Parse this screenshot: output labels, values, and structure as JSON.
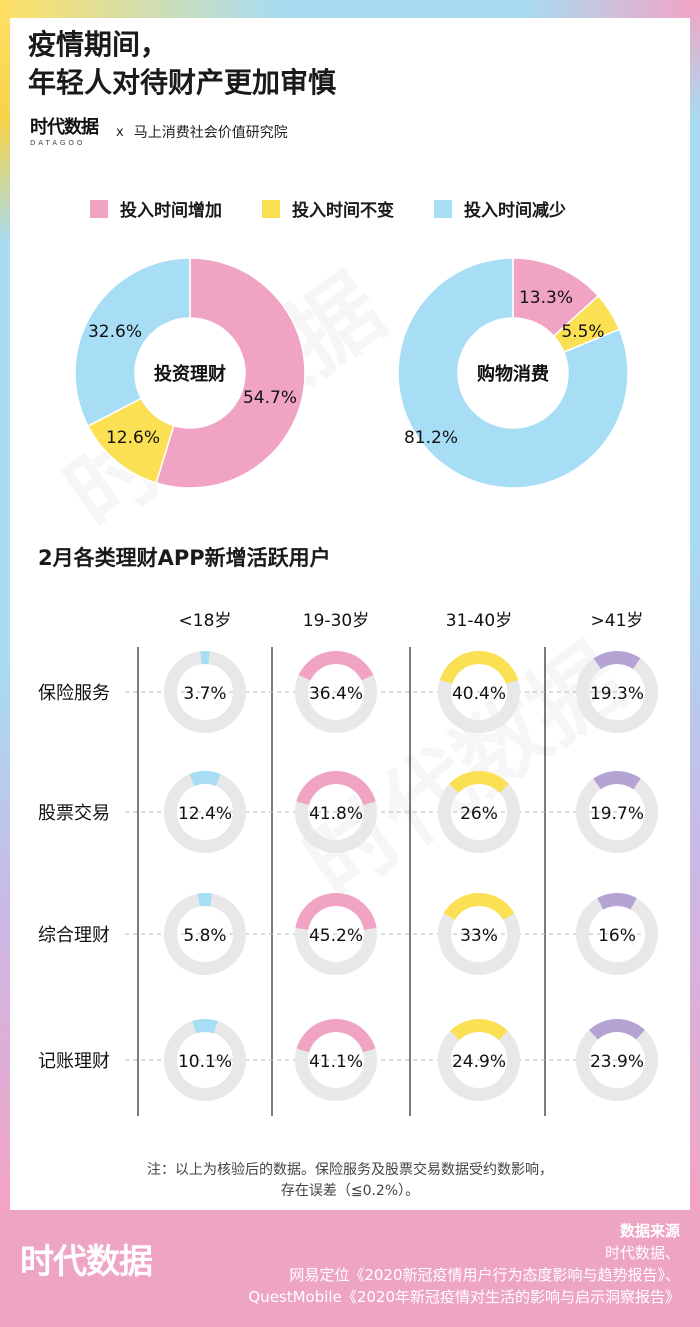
{
  "title": {
    "line1": "疫情期间，",
    "line2": "年轻人对待财产更加审慎"
  },
  "brand": {
    "logo": "时代数据",
    "logo_sub": "DATAGOO",
    "x": "x",
    "partner": "马上消费社会价值研究院"
  },
  "legend": [
    {
      "label": "投入时间增加",
      "color": "#f0a3c3"
    },
    {
      "label": "投入时间不变",
      "color": "#fce054"
    },
    {
      "label": "投入时间减少",
      "color": "#a8def5"
    }
  ],
  "chart_data": [
    {
      "type": "pie",
      "title": "投资理财",
      "slices": [
        {
          "label": "投入时间增加",
          "value": 54.7,
          "text": "54.7%"
        },
        {
          "label": "投入时间不变",
          "value": 12.6,
          "text": "12.6%"
        },
        {
          "label": "投入时间减少",
          "value": 32.6,
          "text": "32.6%"
        }
      ]
    },
    {
      "type": "pie",
      "title": "购物消费",
      "slices": [
        {
          "label": "投入时间增加",
          "value": 13.3,
          "text": "13.3%"
        },
        {
          "label": "投入时间不变",
          "value": 5.5,
          "text": "5.5%"
        },
        {
          "label": "投入时间减少",
          "value": 81.2,
          "text": "81.2%"
        }
      ]
    },
    {
      "type": "table",
      "title": "2月各类理财APP新增活跃用户",
      "columns": [
        {
          "label": "<18岁",
          "color": "#a8def5"
        },
        {
          "label": "19-30岁",
          "color": "#f0a3c3"
        },
        {
          "label": "31-40岁",
          "color": "#fce054"
        },
        {
          "label": ">41岁",
          "color": "#b5a3d4"
        }
      ],
      "rows": [
        {
          "label": "保险服务",
          "values": [
            3.7,
            36.4,
            40.4,
            19.3
          ],
          "texts": [
            "3.7%",
            "36.4%",
            "40.4%",
            "19.3%"
          ]
        },
        {
          "label": "股票交易",
          "values": [
            12.4,
            41.8,
            26,
            19.7
          ],
          "texts": [
            "12.4%",
            "41.8%",
            "26%",
            "19.7%"
          ]
        },
        {
          "label": "综合理财",
          "values": [
            5.8,
            45.2,
            33,
            16
          ],
          "texts": [
            "5.8%",
            "45.2%",
            "33%",
            "16%"
          ]
        },
        {
          "label": "记账理财",
          "values": [
            10.1,
            41.1,
            24.9,
            23.9
          ],
          "texts": [
            "10.1%",
            "41.1%",
            "24.9%",
            "23.9%"
          ]
        }
      ]
    }
  ],
  "note": {
    "line1": "注：以上为核验后的数据。保险服务及股票交易数据受约数影响，",
    "line2": "存在误差（≦0.2%）。"
  },
  "footer": {
    "logo": "时代数据",
    "source_title": "数据来源",
    "sources": [
      "时代数据、",
      "网易定位《2020新冠疫情用户行为态度影响与趋势报告》、",
      "QuestMobile《2020年新冠疫情对生活的影响与启示洞察报告》"
    ]
  }
}
